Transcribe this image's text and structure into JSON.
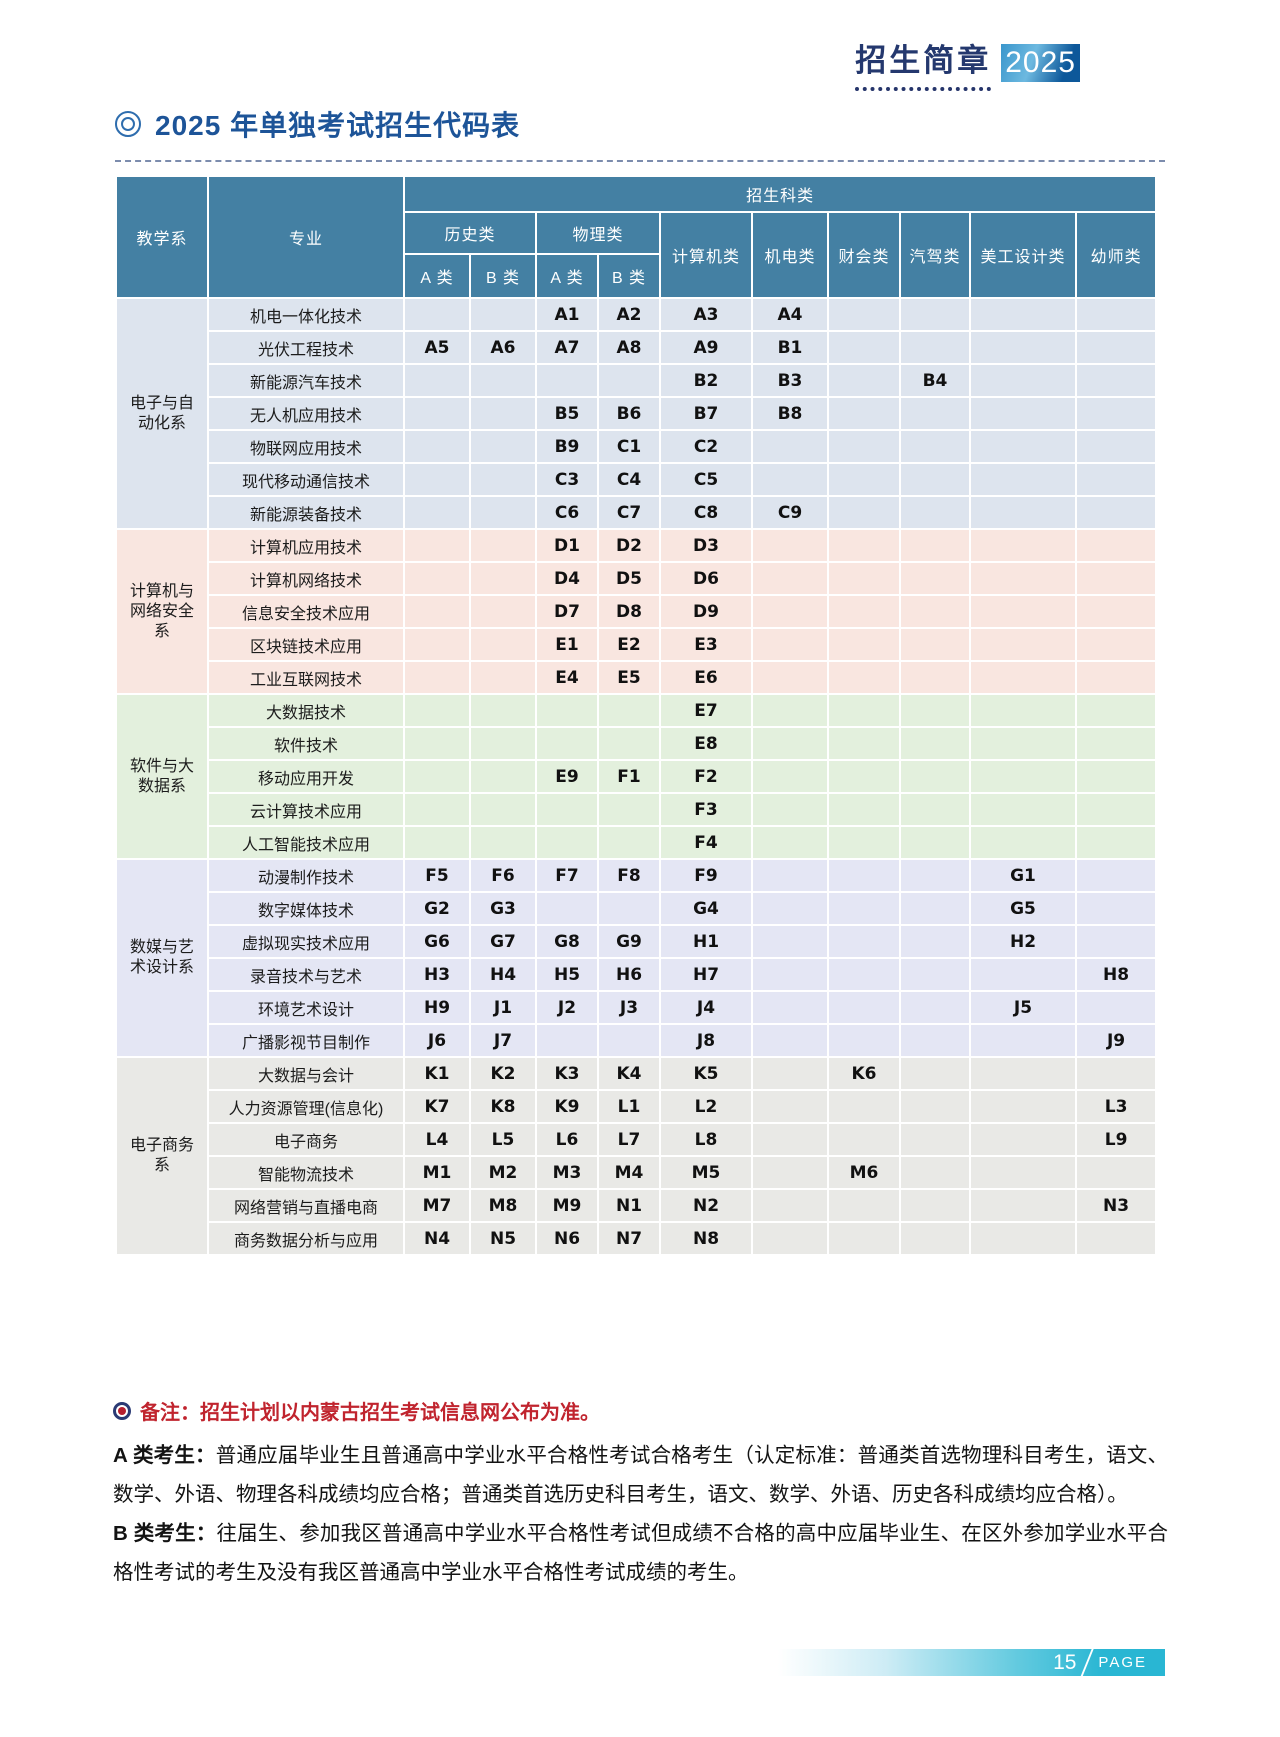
{
  "header": {
    "brand": "招生简章",
    "year": "2025"
  },
  "section": {
    "title": "2025 年单独考试招生代码表"
  },
  "colors": {
    "table_header_bg": "#4480a3",
    "brand_navy": "#24386e",
    "title_blue": "#1d5498",
    "note_red": "#c0242e",
    "footer_teal": "#29b6d3"
  },
  "table": {
    "header": {
      "dept": "教学系",
      "major": "专业",
      "category_group": "招生科类",
      "history": "历史类",
      "physics": "物理类",
      "class_a": "A 类",
      "class_b": "B 类",
      "cols": [
        "计算机类",
        "机电类",
        "财会类",
        "汽驾类",
        "美工设计类",
        "幼师类"
      ]
    },
    "groups": [
      {
        "dept": "电子与自动化系",
        "color": "#dde4ee",
        "rows": [
          {
            "major": "机电一体化技术",
            "codes": [
              "",
              "",
              "A1",
              "A2",
              "A3",
              "A4",
              "",
              "",
              "",
              ""
            ]
          },
          {
            "major": "光伏工程技术",
            "codes": [
              "A5",
              "A6",
              "A7",
              "A8",
              "A9",
              "B1",
              "",
              "",
              "",
              ""
            ]
          },
          {
            "major": "新能源汽车技术",
            "codes": [
              "",
              "",
              "",
              "",
              "B2",
              "B3",
              "",
              "B4",
              "",
              ""
            ]
          },
          {
            "major": "无人机应用技术",
            "codes": [
              "",
              "",
              "B5",
              "B6",
              "B7",
              "B8",
              "",
              "",
              "",
              ""
            ]
          },
          {
            "major": "物联网应用技术",
            "codes": [
              "",
              "",
              "B9",
              "C1",
              "C2",
              "",
              "",
              "",
              "",
              ""
            ]
          },
          {
            "major": "现代移动通信技术",
            "codes": [
              "",
              "",
              "C3",
              "C4",
              "C5",
              "",
              "",
              "",
              "",
              ""
            ]
          },
          {
            "major": "新能源装备技术",
            "codes": [
              "",
              "",
              "C6",
              "C7",
              "C8",
              "C9",
              "",
              "",
              "",
              ""
            ]
          }
        ]
      },
      {
        "dept": "计算机与网络安全系",
        "color": "#f9e6e0",
        "rows": [
          {
            "major": "计算机应用技术",
            "codes": [
              "",
              "",
              "D1",
              "D2",
              "D3",
              "",
              "",
              "",
              "",
              ""
            ]
          },
          {
            "major": "计算机网络技术",
            "codes": [
              "",
              "",
              "D4",
              "D5",
              "D6",
              "",
              "",
              "",
              "",
              ""
            ]
          },
          {
            "major": "信息安全技术应用",
            "codes": [
              "",
              "",
              "D7",
              "D8",
              "D9",
              "",
              "",
              "",
              "",
              ""
            ]
          },
          {
            "major": "区块链技术应用",
            "codes": [
              "",
              "",
              "E1",
              "E2",
              "E3",
              "",
              "",
              "",
              "",
              ""
            ]
          },
          {
            "major": "工业互联网技术",
            "codes": [
              "",
              "",
              "E4",
              "E5",
              "E6",
              "",
              "",
              "",
              "",
              ""
            ]
          }
        ]
      },
      {
        "dept": "软件与大数据系",
        "color": "#e3f0dd",
        "rows": [
          {
            "major": "大数据技术",
            "codes": [
              "",
              "",
              "",
              "",
              "E7",
              "",
              "",
              "",
              "",
              ""
            ]
          },
          {
            "major": "软件技术",
            "codes": [
              "",
              "",
              "",
              "",
              "E8",
              "",
              "",
              "",
              "",
              ""
            ]
          },
          {
            "major": "移动应用开发",
            "codes": [
              "",
              "",
              "E9",
              "F1",
              "F2",
              "",
              "",
              "",
              "",
              ""
            ]
          },
          {
            "major": "云计算技术应用",
            "codes": [
              "",
              "",
              "",
              "",
              "F3",
              "",
              "",
              "",
              "",
              ""
            ]
          },
          {
            "major": "人工智能技术应用",
            "codes": [
              "",
              "",
              "",
              "",
              "F4",
              "",
              "",
              "",
              "",
              ""
            ]
          }
        ]
      },
      {
        "dept": "数媒与艺术设计系",
        "color": "#e4e6f4",
        "rows": [
          {
            "major": "动漫制作技术",
            "codes": [
              "F5",
              "F6",
              "F7",
              "F8",
              "F9",
              "",
              "",
              "",
              "G1",
              ""
            ]
          },
          {
            "major": "数字媒体技术",
            "codes": [
              "G2",
              "G3",
              "",
              "",
              "G4",
              "",
              "",
              "",
              "G5",
              ""
            ]
          },
          {
            "major": "虚拟现实技术应用",
            "codes": [
              "G6",
              "G7",
              "G8",
              "G9",
              "H1",
              "",
              "",
              "",
              "H2",
              ""
            ]
          },
          {
            "major": "录音技术与艺术",
            "codes": [
              "H3",
              "H4",
              "H5",
              "H6",
              "H7",
              "",
              "",
              "",
              "",
              "H8"
            ]
          },
          {
            "major": "环境艺术设计",
            "codes": [
              "H9",
              "J1",
              "J2",
              "J3",
              "J4",
              "",
              "",
              "",
              "J5",
              ""
            ]
          },
          {
            "major": "广播影视节目制作",
            "codes": [
              "J6",
              "J7",
              "",
              "",
              "J8",
              "",
              "",
              "",
              "",
              "J9"
            ]
          }
        ]
      },
      {
        "dept": "电子商务系",
        "color": "#e9e9e6",
        "rows": [
          {
            "major": "大数据与会计",
            "codes": [
              "K1",
              "K2",
              "K3",
              "K4",
              "K5",
              "",
              "K6",
              "",
              "",
              ""
            ]
          },
          {
            "major": "人力资源管理(信息化)",
            "codes": [
              "K7",
              "K8",
              "K9",
              "L1",
              "L2",
              "",
              "",
              "",
              "",
              "L3"
            ]
          },
          {
            "major": "电子商务",
            "codes": [
              "L4",
              "L5",
              "L6",
              "L7",
              "L8",
              "",
              "",
              "",
              "",
              "L9"
            ]
          },
          {
            "major": "智能物流技术",
            "codes": [
              "M1",
              "M2",
              "M3",
              "M4",
              "M5",
              "",
              "M6",
              "",
              "",
              ""
            ]
          },
          {
            "major": "网络营销与直播电商",
            "codes": [
              "M7",
              "M8",
              "M9",
              "N1",
              "N2",
              "",
              "",
              "",
              "",
              "N3"
            ]
          },
          {
            "major": "商务数据分析与应用",
            "codes": [
              "N4",
              "N5",
              "N6",
              "N7",
              "N8",
              "",
              "",
              "",
              "",
              ""
            ]
          }
        ]
      }
    ]
  },
  "notes": {
    "remark_label": "备注：",
    "remark_text": "招生计划以内蒙古招生考试信息网公布为准。",
    "a_label": "A 类考生：",
    "a_text": "普通应届毕业生且普通高中学业水平合格性考试合格考生（认定标准：普通类首选物理科目考生，语文、数学、外语、物理各科成绩均应合格；普通类首选历史科目考生，语文、数学、外语、历史各科成绩均应合格）。",
    "b_label": "B 类考生：",
    "b_text": "往届生、参加我区普通高中学业水平合格性考试但成绩不合格的高中应届毕业生、在区外参加学业水平合格性考试的考生及没有我区普通高中学业水平合格性考试成绩的考生。"
  },
  "footer": {
    "page_number": "15",
    "page_label": "PAGE"
  }
}
